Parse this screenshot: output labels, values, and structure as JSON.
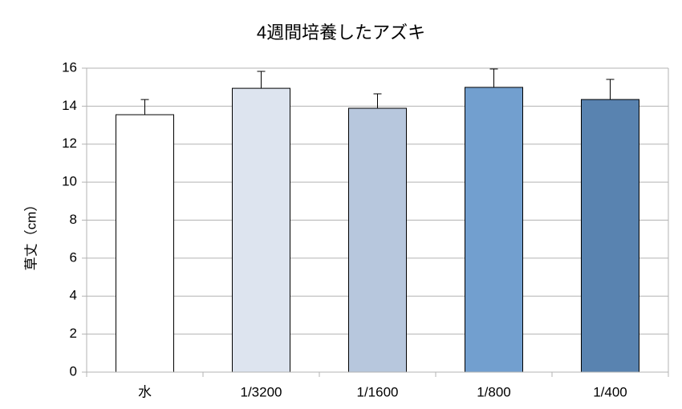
{
  "chart_data": {
    "type": "bar",
    "title": "4週間培養したアズキ",
    "y_label": "草丈（cm）",
    "categories": [
      "水",
      "1/3200",
      "1/1600",
      "1/800",
      "1/400"
    ],
    "values": [
      13.55,
      14.94,
      13.89,
      14.99,
      14.35
    ],
    "errors": [
      0.8,
      0.89,
      0.76,
      0.97,
      1.06
    ],
    "colors": [
      "#ffffff",
      "#dde4ef",
      "#b7c7dd",
      "#729fcf",
      "#5983b0"
    ],
    "ylim": [
      0,
      16
    ],
    "yticks": [
      0,
      2,
      4,
      6,
      8,
      10,
      12,
      14,
      16
    ],
    "grid": true
  }
}
